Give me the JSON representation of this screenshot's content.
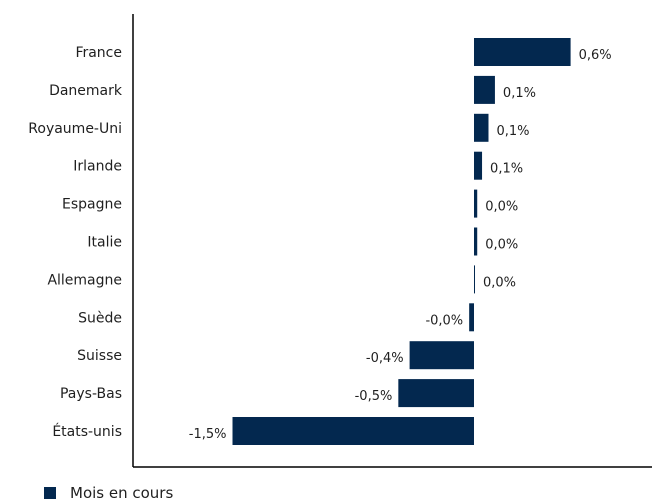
{
  "chart_data": {
    "type": "bar",
    "orientation": "horizontal",
    "categories": [
      "France",
      "Danemark",
      "Royaume-Uni",
      "Irlande",
      "Espagne",
      "Italie",
      "Allemagne",
      "Suède",
      "Suisse",
      "Pays-Bas",
      "États-unis"
    ],
    "series": [
      {
        "name": "Mois en cours",
        "values": [
          0.6,
          0.13,
          0.09,
          0.05,
          0.02,
          0.02,
          0.004,
          -0.03,
          -0.4,
          -0.47,
          -1.5
        ],
        "labels": [
          "0,6%",
          "0,1%",
          "0,1%",
          "0,1%",
          "0,0%",
          "0,0%",
          "0,0%",
          "-0,0%",
          "-0,4%",
          "-0,5%",
          "-1,5%"
        ]
      }
    ],
    "xlim": [
      -2.1,
      1.1
    ],
    "grid": false,
    "legend_position": "bottom-left",
    "bar_color": "#03284f"
  }
}
